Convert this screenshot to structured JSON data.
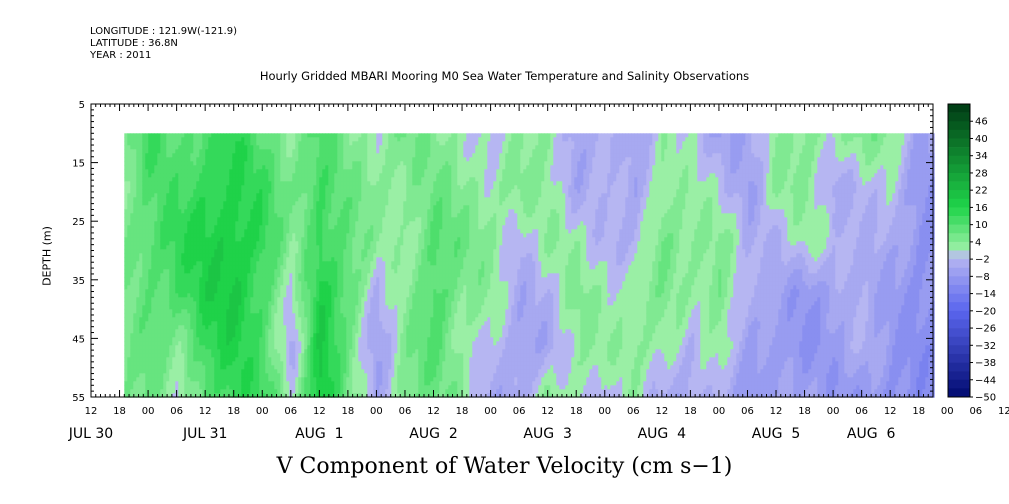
{
  "header": {
    "longitude": "LONGITUDE : 121.9W(-121.9)",
    "latitude": "LATITUDE : 36.8N",
    "year": "YEAR : 2011"
  },
  "chart_data": {
    "type": "heatmap",
    "title": "Hourly Gridded MBARI Mooring M0 Sea Water Temperature and Salinity Observations",
    "xlabel": "V Component of Water Velocity (cm s−1)",
    "ylabel": "DEPTH (m)",
    "y_ticks": [
      "5",
      "15",
      "25",
      "35",
      "45",
      "55"
    ],
    "y_tick_values": [
      5,
      15,
      25,
      35,
      45,
      55
    ],
    "ylim": [
      5,
      55
    ],
    "y_inverted": true,
    "data_depth_range": [
      10,
      55
    ],
    "x_hour_labels": [
      "12",
      "18",
      "00",
      "06",
      "12",
      "18",
      "00",
      "06",
      "12",
      "18",
      "00",
      "06",
      "12",
      "18",
      "00",
      "06",
      "12",
      "18",
      "00",
      "06",
      "12",
      "18",
      "00",
      "06",
      "12",
      "18",
      "00",
      "06",
      "12",
      "18",
      "00",
      "06",
      "12"
    ],
    "x_day_labels": [
      {
        "label": "JUL 30",
        "hour": -12
      },
      {
        "label": "JUL 31",
        "hour": 12
      },
      {
        "label": "AUG  1",
        "hour": 36
      },
      {
        "label": "AUG  2",
        "hour": 60
      },
      {
        "label": "AUG  3",
        "hour": 84
      },
      {
        "label": "AUG  4",
        "hour": 108
      },
      {
        "label": "AUG  5",
        "hour": 132
      },
      {
        "label": "AUG  6",
        "hour": 152
      }
    ],
    "xlim_hours": [
      -12,
      165
    ],
    "data_start_hour": -5,
    "colorbar_labels": [
      "46",
      "40",
      "34",
      "28",
      "22",
      "16",
      "10",
      "4",
      "−2",
      "−8",
      "−14",
      "−20",
      "−26",
      "−32",
      "−38",
      "−44",
      "−50"
    ],
    "colorbar_range": [
      -50,
      52
    ],
    "colorbar_step": 3,
    "colorbar_colors": {
      "high": "#003a14",
      "mid_pos": "#1fd44a",
      "light_pos": "#9ef0a8",
      "light_neg": "#b8b8f2",
      "mid_neg": "#5a66ee",
      "low": "#000a70"
    },
    "time_columns": [
      {
        "hour": -5,
        "values": [
          4,
          5,
          6,
          4,
          5,
          6
        ]
      },
      {
        "hour": 0,
        "values": [
          12,
          10,
          10,
          8,
          7,
          8
        ]
      },
      {
        "hour": 6,
        "values": [
          8,
          10,
          14,
          12,
          4,
          -2
        ]
      },
      {
        "hour": 12,
        "values": [
          12,
          14,
          16,
          16,
          14,
          10
        ]
      },
      {
        "hour": 18,
        "values": [
          14,
          16,
          18,
          18,
          16,
          14
        ]
      },
      {
        "hour": 24,
        "values": [
          8,
          12,
          14,
          12,
          10,
          12
        ]
      },
      {
        "hour": 30,
        "values": [
          4,
          6,
          2,
          -2,
          -4,
          2
        ]
      },
      {
        "hour": 36,
        "values": [
          10,
          12,
          14,
          16,
          18,
          20
        ]
      },
      {
        "hour": 42,
        "values": [
          4,
          6,
          8,
          10,
          6,
          4
        ]
      },
      {
        "hour": 48,
        "values": [
          2,
          4,
          2,
          -4,
          -6,
          -4
        ]
      },
      {
        "hour": 54,
        "values": [
          6,
          4,
          2,
          2,
          4,
          6
        ]
      },
      {
        "hour": 60,
        "values": [
          4,
          6,
          10,
          12,
          10,
          6
        ]
      },
      {
        "hour": 66,
        "values": [
          2,
          4,
          6,
          4,
          2,
          4
        ]
      },
      {
        "hour": 72,
        "values": [
          -2,
          2,
          4,
          2,
          -2,
          -4
        ]
      },
      {
        "hour": 78,
        "values": [
          2,
          4,
          -2,
          -4,
          -6,
          -6
        ]
      },
      {
        "hour": 84,
        "values": [
          4,
          2,
          2,
          -2,
          -4,
          4
        ]
      },
      {
        "hour": 90,
        "values": [
          -6,
          -4,
          2,
          4,
          2,
          2
        ]
      },
      {
        "hour": 96,
        "values": [
          -4,
          -2,
          -2,
          2,
          2,
          -4
        ]
      },
      {
        "hour": 102,
        "values": [
          -4,
          -6,
          -4,
          2,
          4,
          2
        ]
      },
      {
        "hour": 108,
        "values": [
          2,
          4,
          6,
          4,
          2,
          -4
        ]
      },
      {
        "hour": 114,
        "values": [
          -2,
          2,
          4,
          2,
          -4,
          -4
        ]
      },
      {
        "hour": 120,
        "values": [
          -6,
          -2,
          4,
          6,
          4,
          -4
        ]
      },
      {
        "hour": 126,
        "values": [
          -4,
          -6,
          -4,
          -4,
          -6,
          -8
        ]
      },
      {
        "hour": 132,
        "values": [
          2,
          4,
          -2,
          -6,
          -8,
          -6
        ]
      },
      {
        "hour": 138,
        "values": [
          4,
          2,
          2,
          -8,
          -10,
          -6
        ]
      },
      {
        "hour": 144,
        "values": [
          2,
          -4,
          -2,
          -6,
          -6,
          -8
        ]
      },
      {
        "hour": 150,
        "values": [
          4,
          -2,
          -2,
          -4,
          -4,
          -8
        ]
      },
      {
        "hour": 156,
        "values": [
          4,
          -2,
          -4,
          -6,
          -8,
          -10
        ]
      },
      {
        "hour": 162,
        "values": [
          -6,
          -8,
          -10,
          -10,
          -10,
          -10
        ]
      }
    ]
  }
}
